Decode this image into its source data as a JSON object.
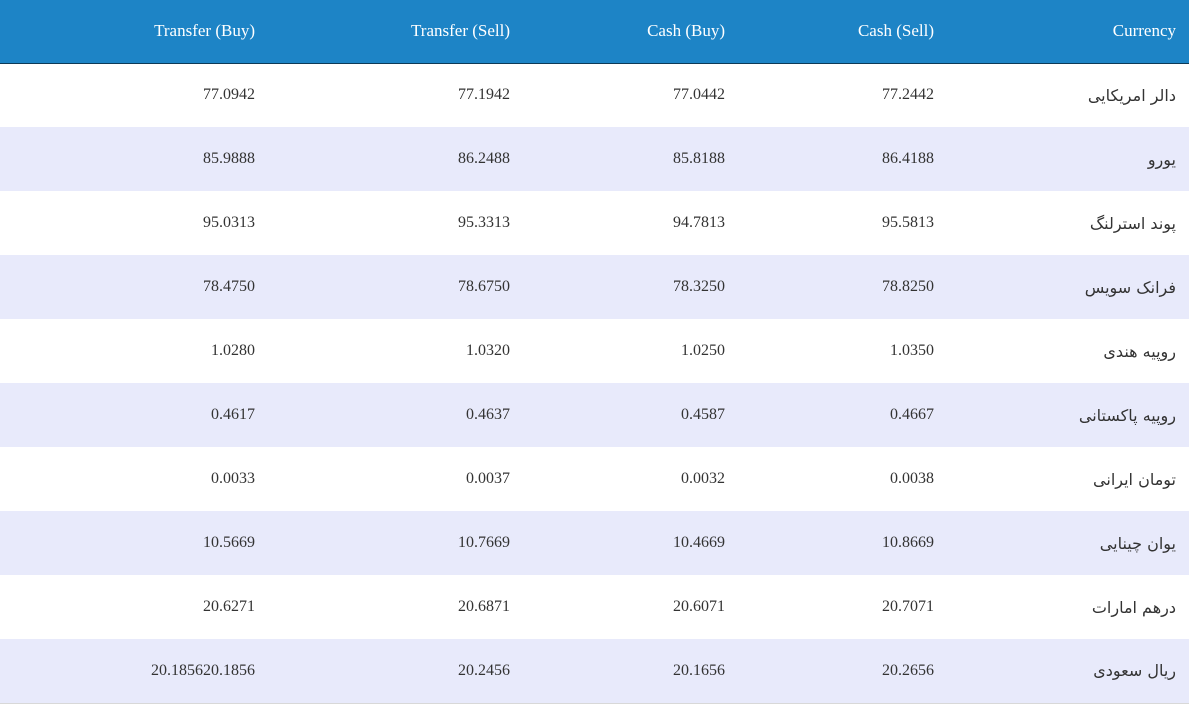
{
  "table": {
    "headers": {
      "transfer_buy": "Transfer (Buy)",
      "transfer_sell": "Transfer (Sell)",
      "cash_buy": "Cash (Buy)",
      "cash_sell": "Cash (Sell)",
      "currency": "Currency"
    },
    "rows": [
      {
        "transfer_buy": "77.0942",
        "transfer_sell": "77.1942",
        "cash_buy": "77.0442",
        "cash_sell": "77.2442",
        "currency": "دالر امریکایی"
      },
      {
        "transfer_buy": "85.9888",
        "transfer_sell": "86.2488",
        "cash_buy": "85.8188",
        "cash_sell": "86.4188",
        "currency": "یورو"
      },
      {
        "transfer_buy": "95.0313",
        "transfer_sell": "95.3313",
        "cash_buy": "94.7813",
        "cash_sell": "95.5813",
        "currency": "پوند استرلنگ"
      },
      {
        "transfer_buy": "78.4750",
        "transfer_sell": "78.6750",
        "cash_buy": "78.3250",
        "cash_sell": "78.8250",
        "currency": "فرانک سویس"
      },
      {
        "transfer_buy": "1.0280",
        "transfer_sell": "1.0320",
        "cash_buy": "1.0250",
        "cash_sell": "1.0350",
        "currency": "روپیه هندی"
      },
      {
        "transfer_buy": "0.4617",
        "transfer_sell": "0.4637",
        "cash_buy": "0.4587",
        "cash_sell": "0.4667",
        "currency": "روپیه پاکستانی"
      },
      {
        "transfer_buy": "0.0033",
        "transfer_sell": "0.0037",
        "cash_buy": "0.0032",
        "cash_sell": "0.0038",
        "currency": "تومان ایرانی"
      },
      {
        "transfer_buy": "10.5669",
        "transfer_sell": "10.7669",
        "cash_buy": "10.4669",
        "cash_sell": "10.8669",
        "currency": "یوان چینایی"
      },
      {
        "transfer_buy": "20.6271",
        "transfer_sell": "20.6871",
        "cash_buy": "20.6071",
        "cash_sell": "20.7071",
        "currency": "درهم امارات"
      },
      {
        "transfer_buy": "20.185620.1856",
        "transfer_sell": "20.2456",
        "cash_buy": "20.1656",
        "cash_sell": "20.2656",
        "currency": "ریال سعودی"
      }
    ]
  },
  "colors": {
    "header_bg": "#1d84c6",
    "header_text": "#ffffff",
    "row_alt_bg": "#e8eafb",
    "row_bg": "#ffffff"
  }
}
